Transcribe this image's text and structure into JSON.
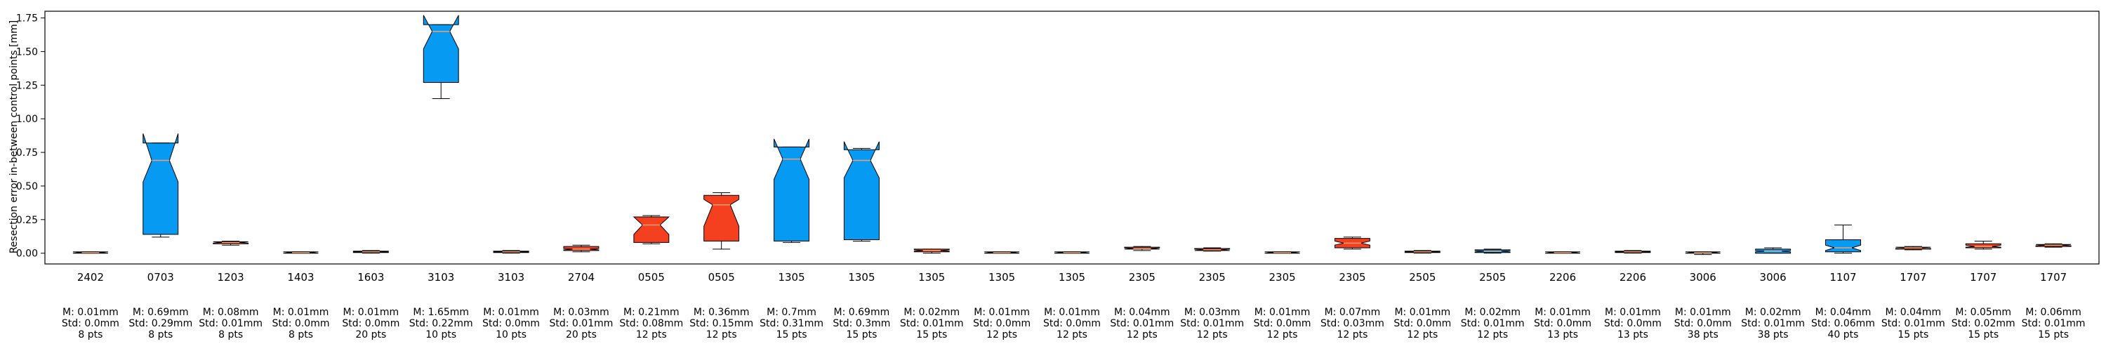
{
  "chart_data": {
    "type": "box",
    "ylabel": "Resection error in-between control points [mm]",
    "ylim": [
      -0.08,
      1.8
    ],
    "yticks": [
      0.0,
      0.25,
      0.5,
      0.75,
      1.0,
      1.25,
      1.5,
      1.75
    ],
    "ytick_labels": [
      "0.00",
      "0.25",
      "0.50",
      "0.75",
      "1.00",
      "1.25",
      "1.50",
      "1.75"
    ],
    "colors": {
      "blue": "#069AF3",
      "red": "#F5401F",
      "median": "#f0a070",
      "edge": "#000000"
    },
    "boxes": [
      {
        "label": "2402",
        "stats": [
          "M: 0.01mm",
          "Std: 0.0mm",
          "8 pts"
        ],
        "color": "red",
        "q1": 0.0,
        "median": 0.005,
        "q3": 0.01,
        "whisker_low": 0.0,
        "whisker_high": 0.01,
        "notch_low": 0.0,
        "notch_high": 0.01
      },
      {
        "label": "0703",
        "stats": [
          "M: 0.69mm",
          "Std: 0.29mm",
          "8 pts"
        ],
        "color": "blue",
        "q1": 0.14,
        "median": 0.69,
        "q3": 0.82,
        "whisker_low": 0.12,
        "whisker_high": 0.82,
        "notch_low": 0.53,
        "notch_high": 0.89
      },
      {
        "label": "1203",
        "stats": [
          "M: 0.08mm",
          "Std: 0.01mm",
          "8 pts"
        ],
        "color": "red",
        "q1": 0.07,
        "median": 0.08,
        "q3": 0.085,
        "whisker_low": 0.06,
        "whisker_high": 0.09,
        "notch_low": 0.075,
        "notch_high": 0.085
      },
      {
        "label": "1403",
        "stats": [
          "M: 0.01mm",
          "Std: 0.0mm",
          "8 pts"
        ],
        "color": "red",
        "q1": 0.0,
        "median": 0.005,
        "q3": 0.01,
        "whisker_low": 0.0,
        "whisker_high": 0.01,
        "notch_low": 0.0,
        "notch_high": 0.01
      },
      {
        "label": "1603",
        "stats": [
          "M: 0.01mm",
          "Std: 0.0mm",
          "20 pts"
        ],
        "color": "red",
        "q1": 0.005,
        "median": 0.01,
        "q3": 0.015,
        "whisker_low": 0.0,
        "whisker_high": 0.02,
        "notch_low": 0.008,
        "notch_high": 0.012
      },
      {
        "label": "3103",
        "stats": [
          "M: 1.65mm",
          "Std: 0.22mm",
          "10 pts"
        ],
        "color": "blue",
        "q1": 1.27,
        "median": 1.65,
        "q3": 1.7,
        "whisker_low": 1.15,
        "whisker_high": 1.7,
        "notch_low": 1.52,
        "notch_high": 1.77
      },
      {
        "label": "3103",
        "stats": [
          "M: 0.01mm",
          "Std: 0.0mm",
          "10 pts"
        ],
        "color": "red",
        "q1": 0.005,
        "median": 0.01,
        "q3": 0.015,
        "whisker_low": 0.0,
        "whisker_high": 0.02,
        "notch_low": 0.008,
        "notch_high": 0.012
      },
      {
        "label": "2704",
        "stats": [
          "M: 0.03mm",
          "Std: 0.01mm",
          "20 pts"
        ],
        "color": "red",
        "q1": 0.02,
        "median": 0.03,
        "q3": 0.05,
        "whisker_low": 0.01,
        "whisker_high": 0.06,
        "notch_low": 0.025,
        "notch_high": 0.035
      },
      {
        "label": "0505",
        "stats": [
          "M: 0.21mm",
          "Std: 0.08mm",
          "12 pts"
        ],
        "color": "red",
        "q1": 0.08,
        "median": 0.21,
        "q3": 0.27,
        "whisker_low": 0.07,
        "whisker_high": 0.28,
        "notch_low": 0.14,
        "notch_high": 0.27
      },
      {
        "label": "0505",
        "stats": [
          "M: 0.36mm",
          "Std: 0.15mm",
          "12 pts"
        ],
        "color": "red",
        "q1": 0.09,
        "median": 0.36,
        "q3": 0.43,
        "whisker_low": 0.03,
        "whisker_high": 0.45,
        "notch_low": 0.2,
        "notch_high": 0.4
      },
      {
        "label": "1305",
        "stats": [
          "M: 0.7mm",
          "Std: 0.31mm",
          "15 pts"
        ],
        "color": "blue",
        "q1": 0.09,
        "median": 0.7,
        "q3": 0.79,
        "whisker_low": 0.08,
        "whisker_high": 0.79,
        "notch_low": 0.55,
        "notch_high": 0.85
      },
      {
        "label": "1305",
        "stats": [
          "M: 0.69mm",
          "Std: 0.3mm",
          "15 pts"
        ],
        "color": "blue",
        "q1": 0.1,
        "median": 0.69,
        "q3": 0.77,
        "whisker_low": 0.09,
        "whisker_high": 0.78,
        "notch_low": 0.56,
        "notch_high": 0.83
      },
      {
        "label": "1305",
        "stats": [
          "M: 0.02mm",
          "Std: 0.01mm",
          "15 pts"
        ],
        "color": "red",
        "q1": 0.01,
        "median": 0.02,
        "q3": 0.03,
        "whisker_low": 0.0,
        "whisker_high": 0.03,
        "notch_low": 0.015,
        "notch_high": 0.025
      },
      {
        "label": "1305",
        "stats": [
          "M: 0.01mm",
          "Std: 0.0mm",
          "12 pts"
        ],
        "color": "red",
        "q1": 0.0,
        "median": 0.005,
        "q3": 0.01,
        "whisker_low": 0.0,
        "whisker_high": 0.01,
        "notch_low": 0.0,
        "notch_high": 0.01
      },
      {
        "label": "1305",
        "stats": [
          "M: 0.01mm",
          "Std: 0.0mm",
          "12 pts"
        ],
        "color": "red",
        "q1": 0.0,
        "median": 0.005,
        "q3": 0.01,
        "whisker_low": 0.0,
        "whisker_high": 0.01,
        "notch_low": 0.0,
        "notch_high": 0.01
      },
      {
        "label": "2305",
        "stats": [
          "M: 0.04mm",
          "Std: 0.01mm",
          "12 pts"
        ],
        "color": "red",
        "q1": 0.03,
        "median": 0.035,
        "q3": 0.045,
        "whisker_low": 0.02,
        "whisker_high": 0.05,
        "notch_low": 0.03,
        "notch_high": 0.04
      },
      {
        "label": "2305",
        "stats": [
          "M: 0.03mm",
          "Std: 0.01mm",
          "12 pts"
        ],
        "color": "red",
        "q1": 0.02,
        "median": 0.025,
        "q3": 0.035,
        "whisker_low": 0.015,
        "whisker_high": 0.04,
        "notch_low": 0.02,
        "notch_high": 0.03
      },
      {
        "label": "2305",
        "stats": [
          "M: 0.01mm",
          "Std: 0.0mm",
          "12 pts"
        ],
        "color": "red",
        "q1": 0.0,
        "median": 0.005,
        "q3": 0.01,
        "whisker_low": 0.0,
        "whisker_high": 0.01,
        "notch_low": 0.0,
        "notch_high": 0.01
      },
      {
        "label": "2305",
        "stats": [
          "M: 0.07mm",
          "Std: 0.03mm",
          "12 pts"
        ],
        "color": "red",
        "q1": 0.04,
        "median": 0.075,
        "q3": 0.11,
        "whisker_low": 0.03,
        "whisker_high": 0.12,
        "notch_low": 0.06,
        "notch_high": 0.09
      },
      {
        "label": "2505",
        "stats": [
          "M: 0.01mm",
          "Std: 0.0mm",
          "12 pts"
        ],
        "color": "red",
        "q1": 0.005,
        "median": 0.01,
        "q3": 0.015,
        "whisker_low": 0.0,
        "whisker_high": 0.02,
        "notch_low": 0.008,
        "notch_high": 0.012
      },
      {
        "label": "2505",
        "stats": [
          "M: 0.02mm",
          "Std: 0.01mm",
          "12 pts"
        ],
        "color": "blue",
        "q1": 0.005,
        "median": 0.015,
        "q3": 0.025,
        "whisker_low": 0.0,
        "whisker_high": 0.03,
        "notch_low": 0.01,
        "notch_high": 0.02
      },
      {
        "label": "2206",
        "stats": [
          "M: 0.01mm",
          "Std: 0.0mm",
          "13 pts"
        ],
        "color": "red",
        "q1": 0.0,
        "median": 0.005,
        "q3": 0.01,
        "whisker_low": 0.0,
        "whisker_high": 0.01,
        "notch_low": 0.0,
        "notch_high": 0.01
      },
      {
        "label": "2206",
        "stats": [
          "M: 0.01mm",
          "Std: 0.0mm",
          "13 pts"
        ],
        "color": "red",
        "q1": 0.005,
        "median": 0.01,
        "q3": 0.015,
        "whisker_low": 0.0,
        "whisker_high": 0.02,
        "notch_low": 0.008,
        "notch_high": 0.012
      },
      {
        "label": "3006",
        "stats": [
          "M: 0.01mm",
          "Std: 0.0mm",
          "38 pts"
        ],
        "color": "red",
        "q1": 0.0,
        "median": 0.005,
        "q3": 0.01,
        "whisker_low": -0.01,
        "whisker_high": 0.01,
        "notch_low": 0.0,
        "notch_high": 0.01
      },
      {
        "label": "3006",
        "stats": [
          "M: 0.02mm",
          "Std: 0.01mm",
          "38 pts"
        ],
        "color": "blue",
        "q1": 0.0,
        "median": 0.015,
        "q3": 0.03,
        "whisker_low": 0.0,
        "whisker_high": 0.04,
        "notch_low": 0.01,
        "notch_high": 0.02
      },
      {
        "label": "1107",
        "stats": [
          "M: 0.04mm",
          "Std: 0.06mm",
          "40 pts"
        ],
        "color": "blue",
        "q1": 0.01,
        "median": 0.04,
        "q3": 0.1,
        "whisker_low": 0.0,
        "whisker_high": 0.21,
        "notch_low": 0.02,
        "notch_high": 0.06
      },
      {
        "label": "1707",
        "stats": [
          "M: 0.04mm",
          "Std: 0.01mm",
          "15 pts"
        ],
        "color": "red",
        "q1": 0.03,
        "median": 0.04,
        "q3": 0.045,
        "whisker_low": 0.025,
        "whisker_high": 0.05,
        "notch_low": 0.035,
        "notch_high": 0.045
      },
      {
        "label": "1707",
        "stats": [
          "M: 0.05mm",
          "Std: 0.02mm",
          "15 pts"
        ],
        "color": "red",
        "q1": 0.04,
        "median": 0.05,
        "q3": 0.07,
        "whisker_low": 0.03,
        "whisker_high": 0.09,
        "notch_low": 0.045,
        "notch_high": 0.06
      },
      {
        "label": "1707",
        "stats": [
          "M: 0.06mm",
          "Std: 0.01mm",
          "15 pts"
        ],
        "color": "red",
        "q1": 0.05,
        "median": 0.06,
        "q3": 0.065,
        "whisker_low": 0.045,
        "whisker_high": 0.07,
        "notch_low": 0.055,
        "notch_high": 0.065
      }
    ]
  }
}
